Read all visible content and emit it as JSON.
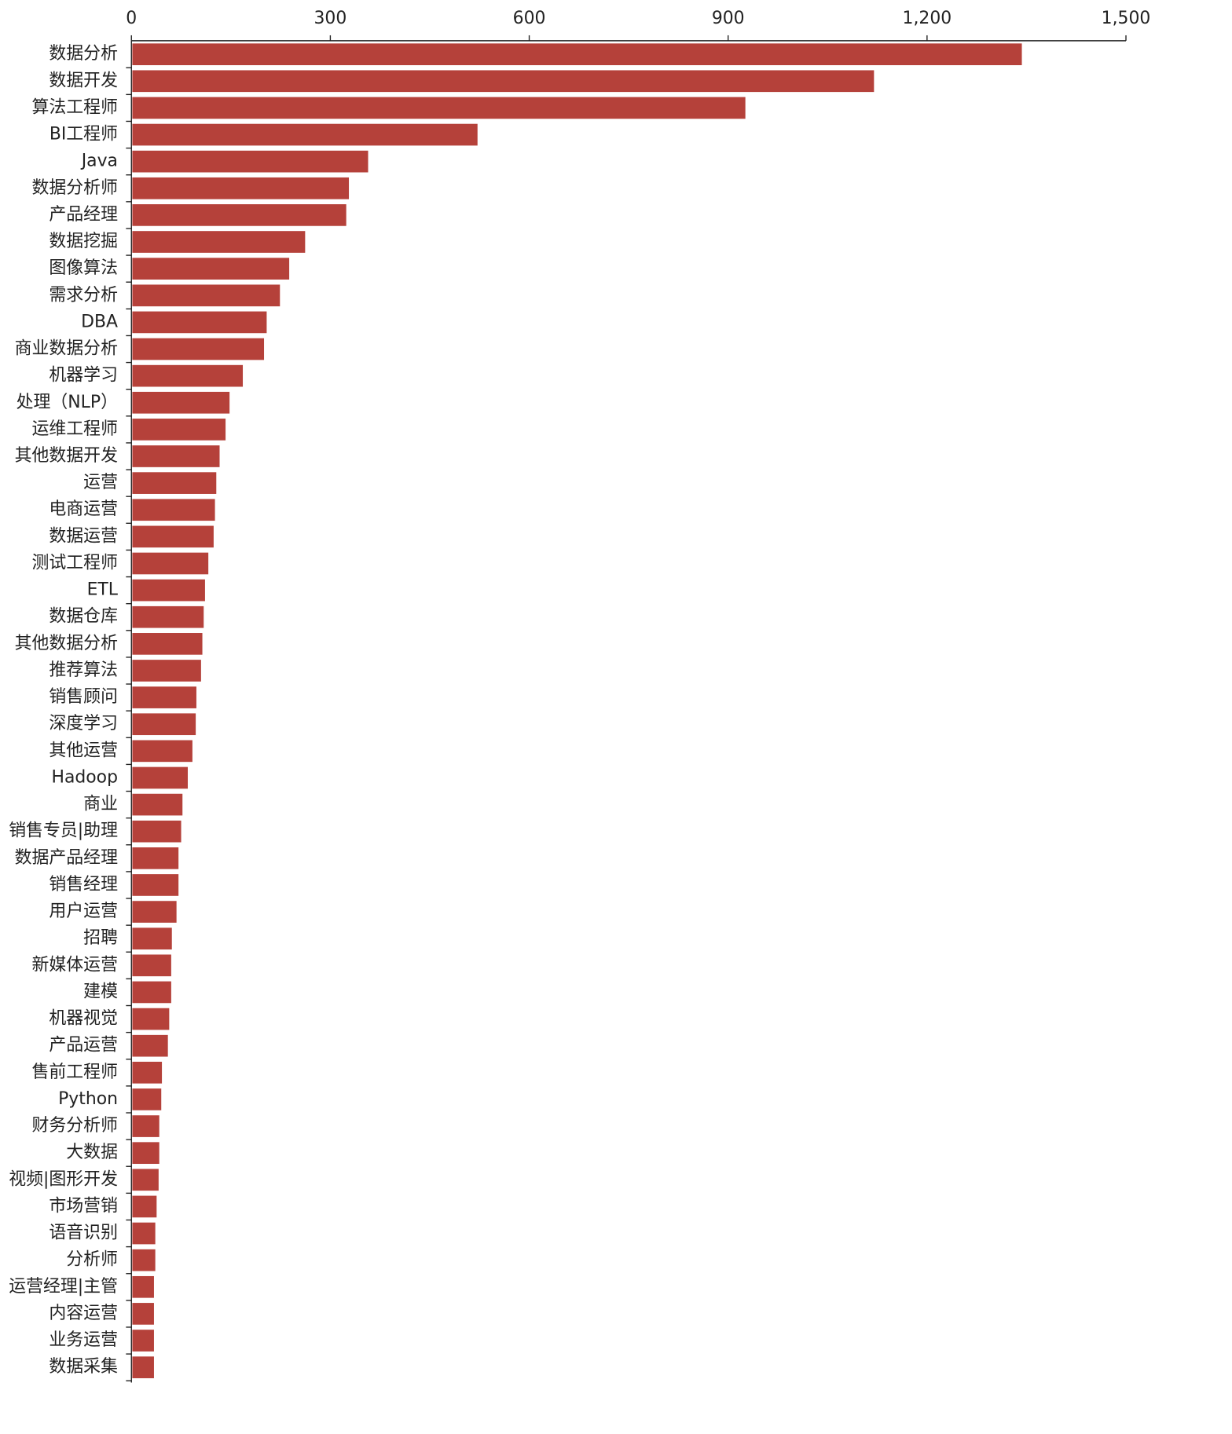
{
  "chart_data": {
    "type": "bar",
    "orientation": "horizontal",
    "color": "#b5413a",
    "categories": [
      "数据分析",
      "数据开发",
      "算法工程师",
      "BI工程师",
      "Java",
      "数据分析师",
      "产品经理",
      "数据挖掘",
      "图像算法",
      "需求分析",
      "DBA",
      "商业数据分析",
      "机器学习",
      "处理（NLP）",
      "运维工程师",
      "其他数据开发",
      "运营",
      "电商运营",
      "数据运营",
      "测试工程师",
      "ETL",
      "数据仓库",
      "其他数据分析",
      "推荐算法",
      "销售顾问",
      "深度学习",
      "其他运营",
      "Hadoop",
      "商业",
      "销售专员|助理",
      "数据产品经理",
      "销售经理",
      "用户运营",
      "招聘",
      "新媒体运营",
      "建模",
      "机器视觉",
      "产品运营",
      "售前工程师",
      "Python",
      "财务分析师",
      "大数据",
      "视频|图形开发",
      "市场营销",
      "语音识别",
      "分析师",
      "运营经理|主管",
      "内容运营",
      "业务运营",
      "数据采集"
    ],
    "values": [
      1343,
      1120,
      926,
      522,
      357,
      328,
      324,
      262,
      238,
      224,
      204,
      200,
      168,
      148,
      142,
      133,
      128,
      126,
      124,
      116,
      111,
      109,
      107,
      105,
      98,
      97,
      92,
      85,
      77,
      75,
      71,
      71,
      68,
      61,
      60,
      60,
      57,
      55,
      46,
      45,
      42,
      42,
      41,
      38,
      36,
      36,
      34,
      34,
      34,
      34
    ],
    "xlim": [
      0,
      1500
    ],
    "xticks": [
      0,
      300,
      600,
      900,
      {
        "value": 1200,
        "label": "1,200"
      },
      {
        "value": 1500,
        "label": "1,500"
      }
    ]
  }
}
